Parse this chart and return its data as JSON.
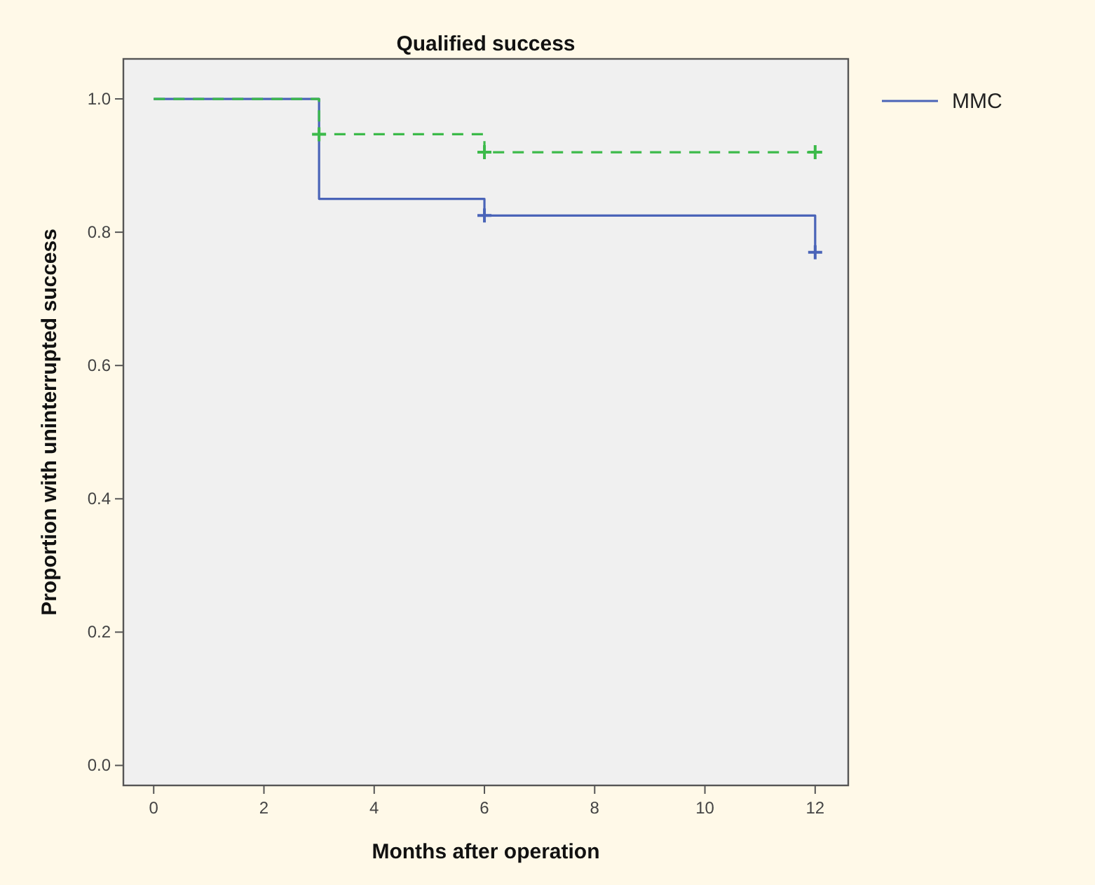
{
  "chart_data": {
    "type": "step",
    "title": "Qualified success",
    "xlabel": "Months after operation",
    "ylabel": "Proportion with uninterrupted success",
    "xlim": [
      -0.55,
      12.6
    ],
    "ylim": [
      -0.03,
      1.06
    ],
    "xticks": [
      0,
      2,
      4,
      6,
      8,
      10,
      12
    ],
    "yticks": [
      {
        "value": 0,
        "label": "0.0"
      },
      0.2,
      0.4,
      0.6,
      0.8,
      {
        "value": 1,
        "label": "1.0"
      }
    ],
    "grid": false,
    "legend": "right",
    "series": [
      {
        "name": "MMC",
        "color": "#4a64b8",
        "x": [
          0,
          3,
          6,
          12
        ],
        "values": [
          1,
          0.85,
          0.825,
          0.77
        ],
        "line_style": "solid",
        "marker": "none"
      },
      {
        "color": "#3cba4a",
        "x": [
          0,
          3,
          6,
          12
        ],
        "values": [
          1,
          0.947,
          0.92,
          0.92
        ],
        "line_style": "dashed",
        "marker": "none"
      },
      {
        "type": "scatter",
        "color": "#4a64b8",
        "x": [
          6,
          12
        ],
        "values": [
          0.825,
          0.77
        ],
        "marker": "cross"
      },
      {
        "type": "scatter",
        "color": "#3cba4a",
        "x": [
          3,
          6,
          12
        ],
        "values": [
          0.947,
          0.92,
          0.92
        ],
        "marker": "cross"
      }
    ]
  }
}
